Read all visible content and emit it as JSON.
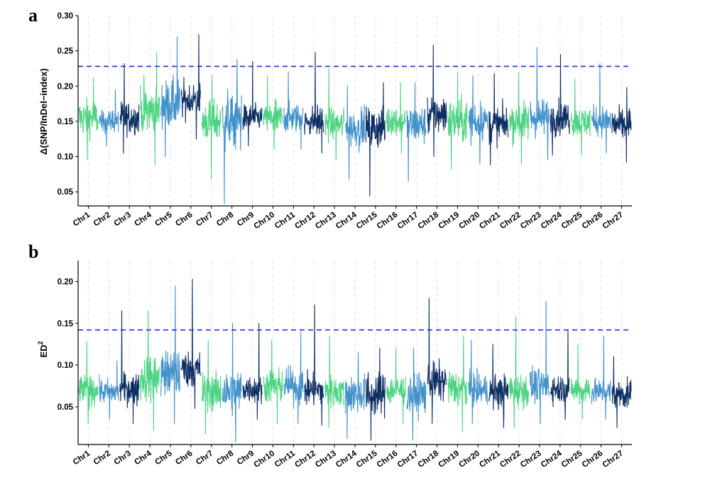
{
  "colors": {
    "chromosome_cycle": [
      "#4dd483",
      "#4392cb",
      "#0e2f63"
    ],
    "threshold": "#2a2ad6",
    "grid": "#e3e3e3",
    "axis": "#000000"
  },
  "chart_data": [
    {
      "type": "line",
      "panel_label": "a",
      "ylabel": "Δ(SNP/InDel−index)",
      "ylim": [
        0.03,
        0.3
      ],
      "yticks": [
        0.05,
        0.1,
        0.15,
        0.2,
        0.25,
        0.3
      ],
      "ytick_labels": [
        "0.05",
        "0.10",
        "0.15",
        "0.20",
        "0.25",
        "0.30"
      ],
      "grid": "vertical dashed at chromosome centers",
      "threshold": 0.228,
      "categories": [
        "Chr1",
        "Chr2",
        "Chr3",
        "Chr4",
        "Chr5",
        "Chr6",
        "Chr7",
        "Chr8",
        "Chr9",
        "Chr10",
        "Chr11",
        "Chr12",
        "Chr13",
        "Chr14",
        "Chr15",
        "Chr16",
        "Chr17",
        "Chr18",
        "Chr19",
        "Chr20",
        "Chr21",
        "Chr22",
        "Chr23",
        "Chr24",
        "Chr25",
        "Chr26",
        "Chr27"
      ],
      "series": [
        {
          "category": "Chr1",
          "mean": 0.155,
          "min": 0.095,
          "max": 0.212
        },
        {
          "category": "Chr2",
          "mean": 0.15,
          "min": 0.115,
          "max": 0.195
        },
        {
          "category": "Chr3",
          "mean": 0.155,
          "min": 0.105,
          "max": 0.232
        },
        {
          "category": "Chr4",
          "mean": 0.165,
          "min": 0.088,
          "max": 0.248
        },
        {
          "category": "Chr5",
          "mean": 0.175,
          "min": 0.1,
          "max": 0.27
        },
        {
          "category": "Chr6",
          "mean": 0.18,
          "min": 0.125,
          "max": 0.273
        },
        {
          "category": "Chr7",
          "mean": 0.15,
          "min": 0.068,
          "max": 0.215
        },
        {
          "category": "Chr8",
          "mean": 0.15,
          "min": 0.033,
          "max": 0.238
        },
        {
          "category": "Chr9",
          "mean": 0.155,
          "min": 0.115,
          "max": 0.235
        },
        {
          "category": "Chr10",
          "mean": 0.155,
          "min": 0.11,
          "max": 0.215
        },
        {
          "category": "Chr11",
          "mean": 0.155,
          "min": 0.11,
          "max": 0.22
        },
        {
          "category": "Chr12",
          "mean": 0.15,
          "min": 0.105,
          "max": 0.248
        },
        {
          "category": "Chr13",
          "mean": 0.145,
          "min": 0.095,
          "max": 0.225
        },
        {
          "category": "Chr14",
          "mean": 0.14,
          "min": 0.068,
          "max": 0.2
        },
        {
          "category": "Chr15",
          "mean": 0.14,
          "min": 0.044,
          "max": 0.205
        },
        {
          "category": "Chr16",
          "mean": 0.15,
          "min": 0.105,
          "max": 0.205
        },
        {
          "category": "Chr17",
          "mean": 0.145,
          "min": 0.065,
          "max": 0.205
        },
        {
          "category": "Chr18",
          "mean": 0.16,
          "min": 0.1,
          "max": 0.258
        },
        {
          "category": "Chr19",
          "mean": 0.15,
          "min": 0.082,
          "max": 0.22
        },
        {
          "category": "Chr20",
          "mean": 0.15,
          "min": 0.09,
          "max": 0.215
        },
        {
          "category": "Chr21",
          "mean": 0.145,
          "min": 0.088,
          "max": 0.218
        },
        {
          "category": "Chr22",
          "mean": 0.15,
          "min": 0.09,
          "max": 0.22
        },
        {
          "category": "Chr23",
          "mean": 0.155,
          "min": 0.095,
          "max": 0.255
        },
        {
          "category": "Chr24",
          "mean": 0.155,
          "min": 0.102,
          "max": 0.245
        },
        {
          "category": "Chr25",
          "mean": 0.15,
          "min": 0.102,
          "max": 0.21
        },
        {
          "category": "Chr26",
          "mean": 0.15,
          "min": 0.105,
          "max": 0.232
        },
        {
          "category": "Chr27",
          "mean": 0.145,
          "min": 0.092,
          "max": 0.198
        }
      ]
    },
    {
      "type": "line",
      "panel_label": "b",
      "ylabel": "ED",
      "ylabel_superscript": "2",
      "ylim": [
        0.005,
        0.225
      ],
      "yticks": [
        0.05,
        0.1,
        0.15,
        0.2
      ],
      "ytick_labels": [
        "0.05",
        "0.10",
        "0.15",
        "0.20"
      ],
      "grid": "vertical dashed at chromosome centers",
      "threshold": 0.142,
      "categories": [
        "Chr1",
        "Chr2",
        "Chr3",
        "Chr4",
        "Chr5",
        "Chr6",
        "Chr7",
        "Chr8",
        "Chr9",
        "Chr10",
        "Chr11",
        "Chr12",
        "Chr13",
        "Chr14",
        "Chr15",
        "Chr16",
        "Chr17",
        "Chr18",
        "Chr19",
        "Chr20",
        "Chr21",
        "Chr22",
        "Chr23",
        "Chr24",
        "Chr25",
        "Chr26",
        "Chr27"
      ],
      "series": [
        {
          "category": "Chr1",
          "mean": 0.07,
          "min": 0.03,
          "max": 0.128
        },
        {
          "category": "Chr2",
          "mean": 0.068,
          "min": 0.035,
          "max": 0.105
        },
        {
          "category": "Chr3",
          "mean": 0.072,
          "min": 0.03,
          "max": 0.165
        },
        {
          "category": "Chr4",
          "mean": 0.085,
          "min": 0.022,
          "max": 0.165
        },
        {
          "category": "Chr5",
          "mean": 0.09,
          "min": 0.03,
          "max": 0.195
        },
        {
          "category": "Chr6",
          "mean": 0.095,
          "min": 0.048,
          "max": 0.203
        },
        {
          "category": "Chr7",
          "mean": 0.068,
          "min": 0.018,
          "max": 0.13
        },
        {
          "category": "Chr8",
          "mean": 0.068,
          "min": 0.008,
          "max": 0.15
        },
        {
          "category": "Chr9",
          "mean": 0.072,
          "min": 0.035,
          "max": 0.15
        },
        {
          "category": "Chr10",
          "mean": 0.075,
          "min": 0.03,
          "max": 0.13
        },
        {
          "category": "Chr11",
          "mean": 0.075,
          "min": 0.03,
          "max": 0.14
        },
        {
          "category": "Chr12",
          "mean": 0.07,
          "min": 0.028,
          "max": 0.172
        },
        {
          "category": "Chr13",
          "mean": 0.068,
          "min": 0.025,
          "max": 0.135
        },
        {
          "category": "Chr14",
          "mean": 0.065,
          "min": 0.012,
          "max": 0.115
        },
        {
          "category": "Chr15",
          "mean": 0.065,
          "min": 0.01,
          "max": 0.12
        },
        {
          "category": "Chr16",
          "mean": 0.07,
          "min": 0.03,
          "max": 0.12
        },
        {
          "category": "Chr17",
          "mean": 0.065,
          "min": 0.01,
          "max": 0.12
        },
        {
          "category": "Chr18",
          "mean": 0.08,
          "min": 0.03,
          "max": 0.18
        },
        {
          "category": "Chr19",
          "mean": 0.072,
          "min": 0.02,
          "max": 0.135
        },
        {
          "category": "Chr20",
          "mean": 0.07,
          "min": 0.03,
          "max": 0.13
        },
        {
          "category": "Chr21",
          "mean": 0.068,
          "min": 0.025,
          "max": 0.125
        },
        {
          "category": "Chr22",
          "mean": 0.07,
          "min": 0.025,
          "max": 0.158
        },
        {
          "category": "Chr23",
          "mean": 0.075,
          "min": 0.03,
          "max": 0.176
        },
        {
          "category": "Chr24",
          "mean": 0.072,
          "min": 0.035,
          "max": 0.142
        },
        {
          "category": "Chr25",
          "mean": 0.07,
          "min": 0.035,
          "max": 0.125
        },
        {
          "category": "Chr26",
          "mean": 0.068,
          "min": 0.035,
          "max": 0.135
        },
        {
          "category": "Chr27",
          "mean": 0.065,
          "min": 0.025,
          "max": 0.11
        }
      ]
    }
  ]
}
